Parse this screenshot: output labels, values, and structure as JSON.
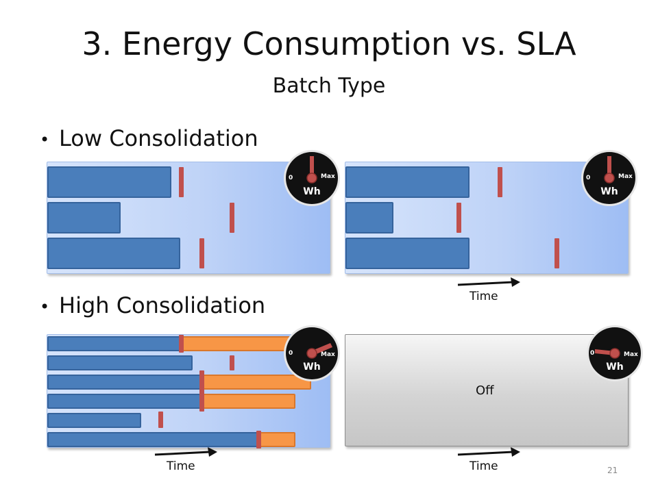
{
  "slide": {
    "title": "3. Energy Consumption vs. SLA",
    "subtitle": "Batch Type",
    "page_number": "21"
  },
  "bullets": [
    {
      "text": "Low Consolidation"
    },
    {
      "text": "High Consolidation"
    }
  ],
  "gauge": {
    "min_label": "0",
    "max_label": "Max",
    "unit_label": "Wh"
  },
  "axis": {
    "time_label": "Time"
  },
  "off_label": "Off",
  "colors": {
    "job": "#4a7ebb",
    "overtime": "#f79646",
    "deadline_marker": "#c0504d",
    "gauge_face": "#111111",
    "gauge_needle": "#c0504d"
  }
}
